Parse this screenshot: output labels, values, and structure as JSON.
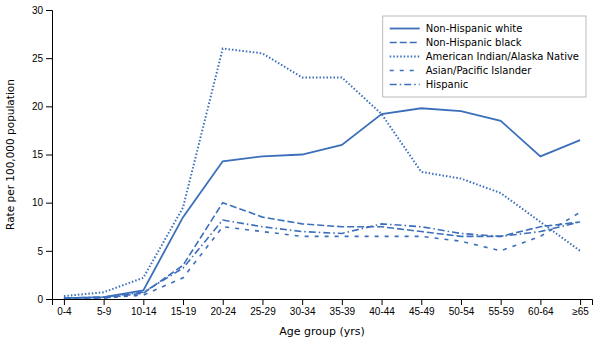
{
  "chart_data": {
    "type": "line",
    "x_label": "Age group (yrs)",
    "y_label": "Rate per 100,000 population",
    "categories": [
      "0-4",
      "5-9",
      "10-14",
      "15-19",
      "20-24",
      "25-29",
      "30-34",
      "35-39",
      "40-44",
      "45-49",
      "50-54",
      "55-59",
      "60-64",
      "≥65"
    ],
    "color": "#3c6fbb",
    "series": [
      {
        "name": "Non-Hispanic white",
        "line_style": "solid",
        "values": [
          0.1,
          0.2,
          0.9,
          8.5,
          14.3,
          14.8,
          15.0,
          16.0,
          19.2,
          19.8,
          19.5,
          18.5,
          14.8,
          16.5
        ]
      },
      {
        "name": "Non-Hispanic black",
        "line_style": "dashed",
        "values": [
          0.1,
          0.1,
          0.6,
          3.5,
          10.0,
          8.5,
          7.8,
          7.5,
          7.5,
          7.0,
          6.5,
          6.5,
          7.5,
          8.0
        ]
      },
      {
        "name": "American Indian/Alaska Native",
        "line_style": "dotted",
        "values": [
          0.3,
          0.7,
          2.2,
          9.5,
          26.0,
          25.5,
          23.0,
          23.0,
          19.2,
          13.2,
          12.5,
          11.0,
          8.0,
          5.0
        ]
      },
      {
        "name": "Asian/Pacific Islander",
        "line_style": "loosely-dashed",
        "values": [
          0.05,
          0.1,
          0.4,
          2.2,
          7.5,
          7.0,
          6.5,
          6.5,
          6.5,
          6.5,
          6.0,
          5.0,
          6.5,
          9.0
        ]
      },
      {
        "name": "Hispanic",
        "line_style": "dash-dot",
        "values": [
          0.1,
          0.2,
          0.7,
          3.2,
          8.2,
          7.5,
          7.0,
          6.8,
          7.8,
          7.5,
          6.8,
          6.5,
          7.0,
          8.0
        ]
      }
    ],
    "ylim": [
      0,
      30
    ],
    "yticks": [
      0,
      5,
      10,
      15,
      20,
      25,
      30
    ],
    "grid": false,
    "legend": "upper-right"
  }
}
